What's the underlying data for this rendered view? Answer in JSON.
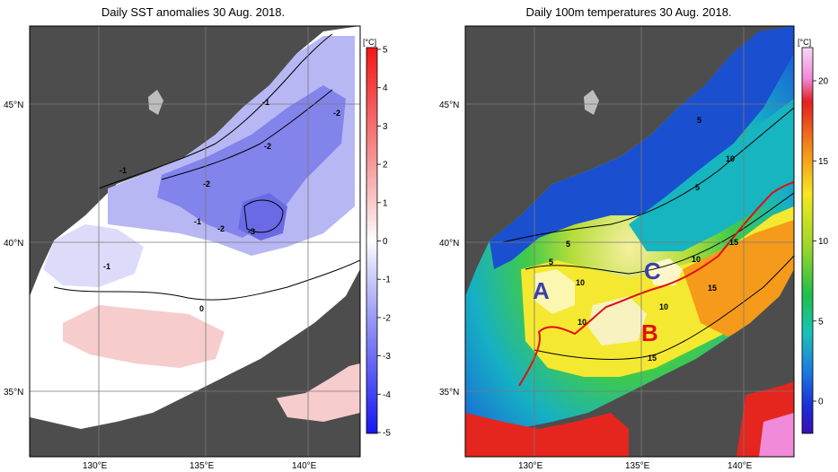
{
  "left_panel": {
    "title": "Daily SST anomalies 30 Aug. 2018.",
    "unit": "[°C]",
    "colorbar_ticks": [
      "5",
      "4",
      "3",
      "2",
      "1",
      "0",
      "-1",
      "-2",
      "-3",
      "-4",
      "-5"
    ],
    "contour_labels": [
      "-1",
      "-2",
      "-1",
      "-2",
      "-2",
      "-1",
      "-2",
      "-3",
      "-1",
      "0"
    ]
  },
  "right_panel": {
    "title": "Daily 100m temperatures 30 Aug. 2018.",
    "unit": "[°C]",
    "colorbar_ticks": [
      "20",
      "15",
      "10",
      "5",
      "0"
    ],
    "contour_labels": [
      "5",
      "10",
      "5",
      "5",
      "15",
      "10",
      "10",
      "10",
      "15",
      "10",
      "15",
      "5"
    ],
    "regions": [
      {
        "label": "A",
        "color": "#3a3fae"
      },
      {
        "label": "C",
        "color": "#3a3fae"
      },
      {
        "label": "B",
        "color": "#e01010"
      }
    ]
  },
  "axes": {
    "lon_labels": [
      "130°E",
      "135°E",
      "140°E"
    ],
    "lat_labels": [
      "45°N",
      "40°N",
      "35°N"
    ]
  },
  "colors": {
    "land": "#4d4d4d",
    "coast_gray": "#bdbdbd",
    "anom_neg": "#3b3bf0",
    "anom_pos": "#f03030",
    "front_line": "#e01010"
  }
}
